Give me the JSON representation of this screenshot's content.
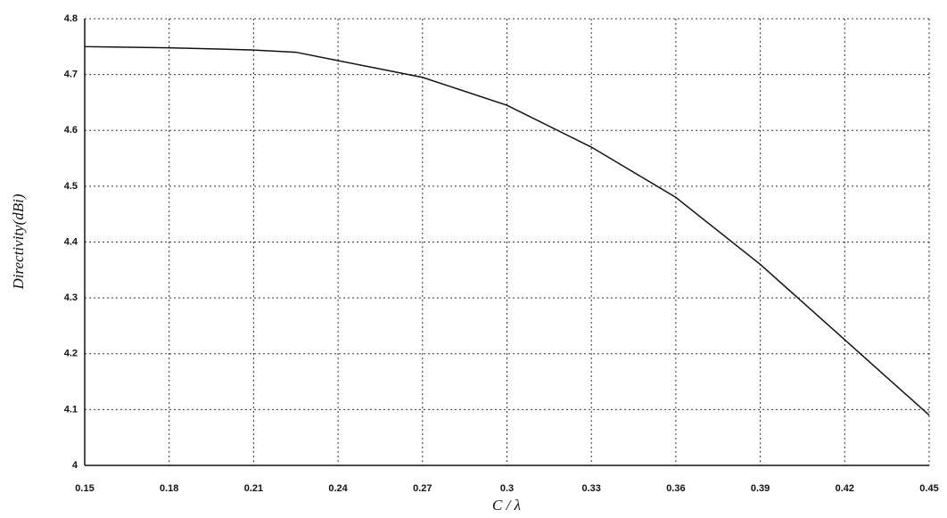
{
  "chart_data": {
    "type": "line",
    "x_label": "C / λ",
    "y_label": "Directivity(dBi)",
    "x": [
      0.15,
      0.18,
      0.21,
      0.225,
      0.24,
      0.27,
      0.3,
      0.33,
      0.36,
      0.39,
      0.42,
      0.45
    ],
    "series": [
      {
        "color": "#111111",
        "values": [
          4.75,
          4.748,
          4.744,
          4.74,
          4.725,
          4.695,
          4.645,
          4.57,
          4.48,
          4.36,
          4.225,
          4.09
        ]
      }
    ],
    "xlim": [
      0.15,
      0.45
    ],
    "xticks": [
      0.15,
      0.18,
      0.21,
      0.24,
      0.27,
      0.3,
      0.33,
      0.36,
      0.39,
      0.42,
      0.45
    ],
    "ylim": [
      4,
      4.8
    ],
    "yticks": [
      4,
      4.1,
      4.2,
      4.3,
      4.4,
      4.5,
      4.6,
      4.7,
      4.8
    ],
    "grid": true
  }
}
